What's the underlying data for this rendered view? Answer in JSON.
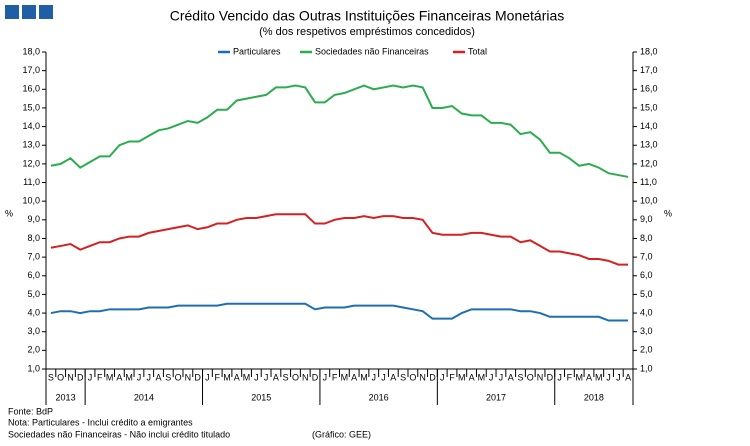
{
  "chart_data": {
    "type": "line",
    "title": "Crédito Vencido das Outras Instituições Financeiras Monetárias",
    "subtitle": "(% dos respetivos empréstimos concedidos)",
    "y_label": "%",
    "y2_label": "%",
    "categories": [
      "S",
      "O",
      "N",
      "D",
      "J",
      "F",
      "M",
      "A",
      "M",
      "J",
      "J",
      "A",
      "S",
      "O",
      "N",
      "D",
      "J",
      "F",
      "M",
      "A",
      "M",
      "J",
      "J",
      "A",
      "S",
      "O",
      "N",
      "D",
      "J",
      "F",
      "M",
      "A",
      "M",
      "J",
      "J",
      "A",
      "S",
      "O",
      "N",
      "D",
      "J",
      "F",
      "M",
      "A",
      "M",
      "J",
      "J",
      "A",
      "S",
      "O",
      "N",
      "D",
      "J",
      "F",
      "M",
      "A",
      "M",
      "J",
      "J",
      "A"
    ],
    "years": [
      "2013",
      "2014",
      "2015",
      "2016",
      "2017",
      "2018"
    ],
    "series": [
      {
        "name": "Particulares",
        "color": "#1f6eb0",
        "values": [
          4.0,
          4.1,
          4.1,
          4.0,
          4.1,
          4.1,
          4.2,
          4.2,
          4.2,
          4.2,
          4.3,
          4.3,
          4.3,
          4.4,
          4.4,
          4.4,
          4.4,
          4.4,
          4.5,
          4.5,
          4.5,
          4.5,
          4.5,
          4.5,
          4.5,
          4.5,
          4.5,
          4.2,
          4.3,
          4.3,
          4.3,
          4.4,
          4.4,
          4.4,
          4.4,
          4.4,
          4.3,
          4.2,
          4.1,
          3.7,
          3.7,
          3.7,
          4.0,
          4.2,
          4.2,
          4.2,
          4.2,
          4.2,
          4.1,
          4.1,
          4.0,
          3.8,
          3.8,
          3.8,
          3.8,
          3.8,
          3.8,
          3.6,
          3.6,
          3.6
        ]
      },
      {
        "name": "Sociedades não Financeiras",
        "color": "#2bad4e",
        "values": [
          11.9,
          12.0,
          12.3,
          11.8,
          12.1,
          12.4,
          12.4,
          13.0,
          13.2,
          13.2,
          13.5,
          13.8,
          13.9,
          14.1,
          14.3,
          14.2,
          14.5,
          14.9,
          14.9,
          15.4,
          15.5,
          15.6,
          15.7,
          16.1,
          16.1,
          16.2,
          16.1,
          15.3,
          15.3,
          15.7,
          15.8,
          16.0,
          16.2,
          16.0,
          16.1,
          16.2,
          16.1,
          16.2,
          16.1,
          15.0,
          15.0,
          15.1,
          14.7,
          14.6,
          14.6,
          14.2,
          14.2,
          14.1,
          13.6,
          13.7,
          13.3,
          12.6,
          12.6,
          12.3,
          11.9,
          12.0,
          11.8,
          11.5,
          11.4,
          11.3
        ]
      },
      {
        "name": "Total",
        "color": "#d42222",
        "values": [
          7.5,
          7.6,
          7.7,
          7.4,
          7.6,
          7.8,
          7.8,
          8.0,
          8.1,
          8.1,
          8.3,
          8.4,
          8.5,
          8.6,
          8.7,
          8.5,
          8.6,
          8.8,
          8.8,
          9.0,
          9.1,
          9.1,
          9.2,
          9.3,
          9.3,
          9.3,
          9.3,
          8.8,
          8.8,
          9.0,
          9.1,
          9.1,
          9.2,
          9.1,
          9.2,
          9.2,
          9.1,
          9.1,
          9.0,
          8.3,
          8.2,
          8.2,
          8.2,
          8.3,
          8.3,
          8.2,
          8.1,
          8.1,
          7.8,
          7.9,
          7.6,
          7.3,
          7.3,
          7.2,
          7.1,
          6.9,
          6.9,
          6.8,
          6.6,
          6.6
        ]
      }
    ],
    "ylim": [
      1,
      18
    ],
    "yticks": [
      {
        "value": 1,
        "label": "1,0"
      },
      {
        "value": 2,
        "label": "2,0"
      },
      {
        "value": 3,
        "label": "3,0"
      },
      {
        "value": 4,
        "label": "4,0"
      },
      {
        "value": 5,
        "label": "5,0"
      },
      {
        "value": 6,
        "label": "6,0"
      },
      {
        "value": 7,
        "label": "7,0"
      },
      {
        "value": 8,
        "label": "8,0"
      },
      {
        "value": 9,
        "label": "9,0"
      },
      {
        "value": 10,
        "label": "10,0"
      },
      {
        "value": 11,
        "label": "11,0"
      },
      {
        "value": 12,
        "label": "12,0"
      },
      {
        "value": 13,
        "label": "13,0"
      },
      {
        "value": 14,
        "label": "14,0"
      },
      {
        "value": 15,
        "label": "15,0"
      },
      {
        "value": 16,
        "label": "16,0"
      },
      {
        "value": 17,
        "label": "17,0"
      },
      {
        "value": 18,
        "label": "18,0"
      }
    ],
    "y2lim": [
      1,
      18
    ],
    "y2ticks": [
      {
        "value": 1,
        "label": "1,0"
      },
      {
        "value": 2,
        "label": "2,0"
      },
      {
        "value": 3,
        "label": "3,0"
      },
      {
        "value": 4,
        "label": "4,0"
      },
      {
        "value": 5,
        "label": "5,0"
      },
      {
        "value": 6,
        "label": "6,0"
      },
      {
        "value": 7,
        "label": "7,0"
      },
      {
        "value": 8,
        "label": "8,0"
      },
      {
        "value": 9,
        "label": "9,0"
      },
      {
        "value": 10,
        "label": "10,0"
      },
      {
        "value": 11,
        "label": "11,0"
      },
      {
        "value": 12,
        "label": "12,0"
      },
      {
        "value": 13,
        "label": "13,0"
      },
      {
        "value": 14,
        "label": "14,0"
      },
      {
        "value": 15,
        "label": "15,0"
      },
      {
        "value": 16,
        "label": "16,0"
      },
      {
        "value": 17,
        "label": "17,0"
      },
      {
        "value": 18,
        "label": "18,0"
      }
    ],
    "grid": false,
    "legend": "top",
    "notes": [
      "Fonte: BdP",
      "Nota: Particulares - Inclui crédito a emigrantes",
      "Sociedades não Financeiras - Não inclui crédito titulado",
      "(Gráfico: GEE)"
    ]
  }
}
